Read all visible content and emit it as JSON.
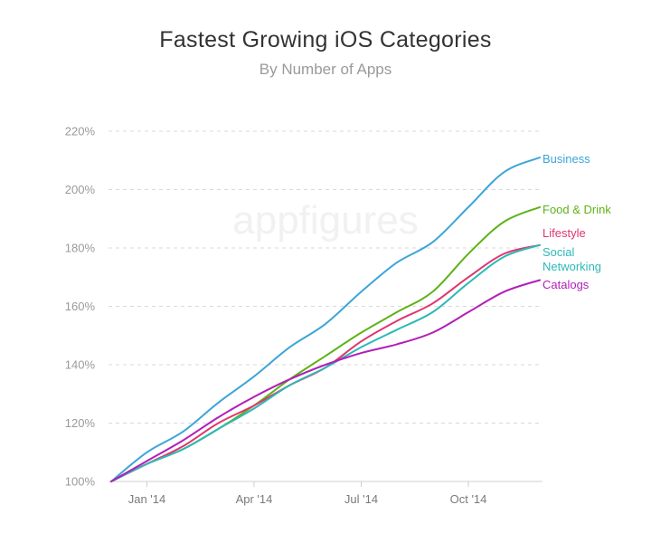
{
  "chart_data": {
    "type": "line",
    "title": "Fastest Growing iOS Categories",
    "subtitle": "By Number of Apps",
    "watermark": "appfigures",
    "ylim": [
      100,
      220
    ],
    "yticks": [
      100,
      120,
      140,
      160,
      180,
      200,
      220
    ],
    "ytick_labels": [
      "100%",
      "120%",
      "140%",
      "160%",
      "180%",
      "200%",
      "220%"
    ],
    "x_range": [
      0,
      12
    ],
    "xticks": [
      {
        "x": 1,
        "label": "Jan '14"
      },
      {
        "x": 4,
        "label": "Apr '14"
      },
      {
        "x": 7,
        "label": "Jul '14"
      },
      {
        "x": 10,
        "label": "Oct '14"
      }
    ],
    "x": [
      0,
      1,
      2,
      3,
      4,
      5,
      6,
      7,
      8,
      9,
      10,
      11,
      12
    ],
    "series": [
      {
        "name": "Business",
        "color": "#3ca5d8",
        "values": [
          100,
          110,
          117,
          127,
          136,
          146,
          154,
          165,
          175,
          182,
          194,
          206,
          211
        ]
      },
      {
        "name": "Food & Drink",
        "color": "#5db318",
        "values": [
          100,
          106,
          111,
          118,
          126,
          135,
          143,
          151,
          158,
          165,
          178,
          189,
          194
        ]
      },
      {
        "name": "Lifestyle",
        "color": "#e0366d",
        "values": [
          100,
          106,
          112,
          120,
          126,
          133,
          139,
          148,
          155,
          161,
          170,
          178,
          181
        ]
      },
      {
        "name": "Social Networking",
        "color": "#2db8b8",
        "values": [
          100,
          106,
          111,
          118,
          125,
          133,
          139,
          146,
          152,
          158,
          168,
          177,
          181
        ]
      },
      {
        "name": "Catalogs",
        "color": "#b21eb8",
        "values": [
          100,
          107,
          114,
          122,
          129,
          135,
          140,
          144,
          147,
          151,
          158,
          165,
          169
        ]
      }
    ],
    "labels": [
      {
        "series": "Business",
        "lines": [
          "Business"
        ]
      },
      {
        "series": "Food & Drink",
        "lines": [
          "Food & Drink"
        ]
      },
      {
        "series": "Lifestyle",
        "lines": [
          "Lifestyle"
        ]
      },
      {
        "series": "Social Networking",
        "lines": [
          "Social",
          "Networking"
        ]
      },
      {
        "series": "Catalogs",
        "lines": [
          "Catalogs"
        ]
      }
    ]
  }
}
